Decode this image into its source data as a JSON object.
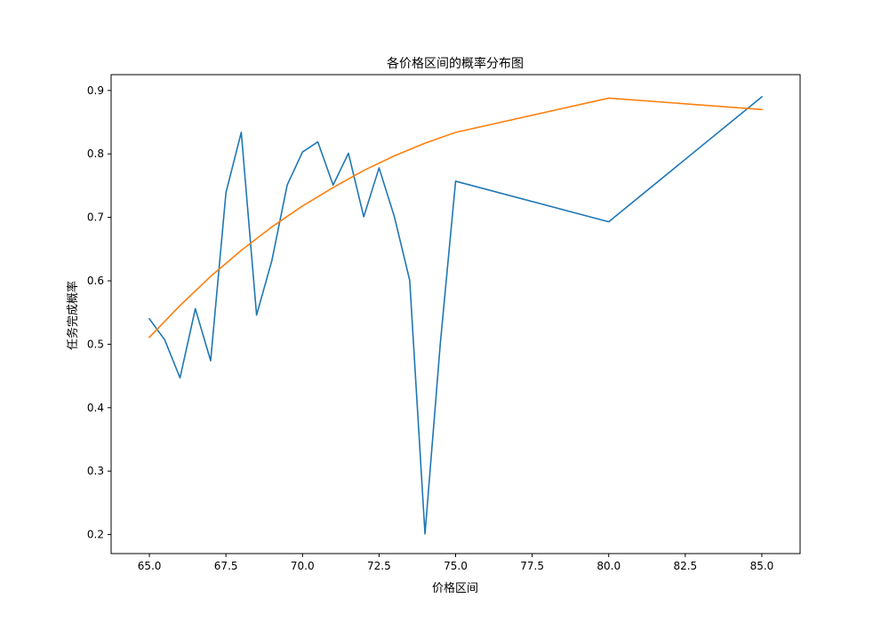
{
  "chart_data": {
    "type": "line",
    "title": "各价格区间的概率分布图",
    "xlabel": "价格区间",
    "ylabel": "任务完成概率",
    "xlim": [
      63.75,
      86.25
    ],
    "ylim": [
      0.17,
      0.925
    ],
    "xticks": [
      "65.0",
      "67.5",
      "70.0",
      "72.5",
      "75.0",
      "77.5",
      "80.0",
      "82.5",
      "85.0"
    ],
    "yticks": [
      "0.2",
      "0.3",
      "0.4",
      "0.5",
      "0.6",
      "0.7",
      "0.8",
      "0.9"
    ],
    "grid": false,
    "series": [
      {
        "color": "#1f77b4",
        "x": [
          65.0,
          65.5,
          66.0,
          66.5,
          67.0,
          67.5,
          68.0,
          68.5,
          69.0,
          69.5,
          70.0,
          70.5,
          71.0,
          71.5,
          72.0,
          72.5,
          73.0,
          73.5,
          74.0,
          74.5,
          75.0,
          80.0,
          85.0
        ],
        "y": [
          0.54,
          0.507,
          0.447,
          0.556,
          0.474,
          0.739,
          0.834,
          0.546,
          0.632,
          0.751,
          0.803,
          0.819,
          0.751,
          0.801,
          0.701,
          0.778,
          0.701,
          0.601,
          0.201,
          0.501,
          0.757,
          0.693,
          0.89
        ]
      },
      {
        "color": "#ff7f0e",
        "x": [
          65.0,
          66.0,
          67.0,
          68.0,
          69.0,
          70.0,
          71.0,
          72.0,
          73.0,
          74.0,
          75.0,
          80.0,
          85.0
        ],
        "y": [
          0.511,
          0.561,
          0.607,
          0.648,
          0.685,
          0.718,
          0.747,
          0.774,
          0.797,
          0.817,
          0.834,
          0.888,
          0.87
        ]
      }
    ]
  }
}
